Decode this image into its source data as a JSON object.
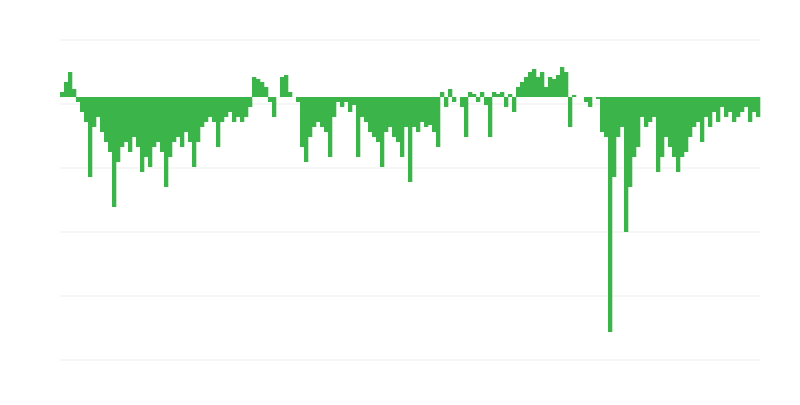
{
  "chart_data": {
    "type": "bar",
    "color": "#3bb54a",
    "grid": true,
    "ylim": [
      -263,
      57
    ],
    "yticks": [
      57,
      -7,
      -71,
      -135,
      -199,
      -263
    ],
    "categories": [
      null,
      null,
      null,
      null,
      null,
      null,
      null,
      null,
      null,
      null,
      null,
      null,
      null,
      null,
      null,
      null,
      null,
      null,
      null,
      null,
      null,
      null,
      null,
      null,
      null,
      null,
      null,
      null,
      null,
      null,
      null,
      null,
      null,
      null,
      null,
      null,
      null,
      null,
      null,
      null,
      null,
      null,
      null,
      null,
      null,
      null,
      null,
      null,
      null,
      null,
      null,
      null,
      null,
      null,
      null,
      null,
      null,
      null,
      null,
      null,
      null,
      null,
      null,
      null,
      null,
      null,
      null,
      null,
      null,
      null,
      null,
      null,
      null,
      null,
      null,
      null,
      null,
      null,
      null,
      null,
      null,
      null,
      null,
      null,
      null,
      null,
      null,
      null,
      null,
      null,
      null,
      null,
      null,
      null,
      null,
      null,
      null,
      null,
      null,
      null,
      null,
      null,
      null,
      null,
      null,
      null,
      null,
      null,
      null,
      null,
      null,
      null,
      null,
      null,
      null,
      null,
      null,
      null,
      null,
      null,
      null,
      null,
      null,
      null,
      null,
      null,
      null,
      null,
      null,
      null,
      null,
      null,
      null,
      null,
      null,
      null,
      null,
      null,
      null,
      null,
      null,
      null,
      null,
      null,
      null,
      null,
      null,
      null,
      null,
      null,
      null,
      null,
      null,
      null,
      null,
      null,
      null,
      null,
      null,
      null,
      null,
      null,
      null,
      null,
      null,
      null,
      null,
      null,
      null,
      null,
      null,
      null,
      null,
      null,
      null
    ],
    "values": [
      5,
      15,
      25,
      8,
      -5,
      -15,
      -25,
      -80,
      -30,
      -20,
      -35,
      -45,
      -55,
      -110,
      -65,
      -50,
      -45,
      -55,
      -40,
      -50,
      -75,
      -60,
      -70,
      -50,
      -45,
      -55,
      -90,
      -60,
      -45,
      -40,
      -50,
      -35,
      -45,
      -70,
      -45,
      -30,
      -25,
      -20,
      -25,
      -50,
      -25,
      -20,
      -15,
      -25,
      -20,
      -25,
      -20,
      -10,
      20,
      18,
      15,
      10,
      -5,
      -20,
      0,
      20,
      22,
      5,
      0,
      -5,
      -50,
      -65,
      -40,
      -30,
      -25,
      -30,
      -35,
      -60,
      -20,
      -5,
      -10,
      -5,
      -15,
      -8,
      -60,
      -20,
      -25,
      -35,
      -40,
      -45,
      -70,
      -35,
      -30,
      -40,
      -45,
      -60,
      -30,
      -85,
      -30,
      -35,
      -25,
      -30,
      -28,
      -35,
      -50,
      5,
      -10,
      8,
      -5,
      0,
      -10,
      -40,
      5,
      3,
      -5,
      5,
      -8,
      -40,
      5,
      3,
      5,
      -10,
      3,
      -15,
      10,
      15,
      20,
      25,
      28,
      20,
      25,
      10,
      20,
      18,
      22,
      30,
      25,
      -30,
      2,
      0,
      0,
      -5,
      -10,
      0,
      -2,
      -35,
      -40,
      -235,
      -80,
      -40,
      -30,
      -135,
      -90,
      -60,
      -50,
      -20,
      -30,
      -25,
      -20,
      -75,
      -60,
      -40,
      -50,
      -60,
      -75,
      -60,
      -55,
      -40,
      -30,
      -25,
      -45,
      -20,
      -30,
      -15,
      -25,
      -10,
      -20,
      -15,
      -25,
      -20,
      -15,
      -10,
      -25,
      -15,
      -20
    ]
  }
}
